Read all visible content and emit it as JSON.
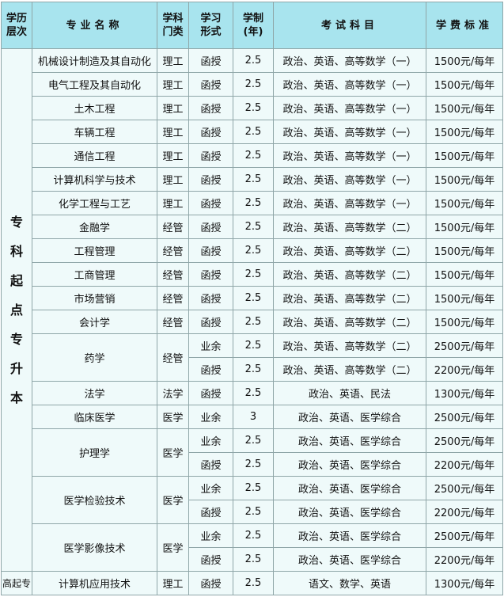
{
  "headers": [
    "学历\n层次",
    "专业名称",
    "学科\n门类",
    "学习\n形式",
    "学制\n(年)",
    "考试科目",
    "学费标准"
  ],
  "levels": [
    {
      "level": "专\n科\n起\n点\n专\n升\n本",
      "majors": [
        {
          "name": "机械设计制造及其自动化",
          "category": "理工",
          "entries": [
            {
              "mode": "函授",
              "years": "2.5",
              "exam": "政治、英语、高等数学（一）",
              "fee": "1500元/每年"
            }
          ]
        },
        {
          "name": "电气工程及其自动化",
          "category": "理工",
          "entries": [
            {
              "mode": "函授",
              "years": "2.5",
              "exam": "政治、英语、高等数学（一）",
              "fee": "1500元/每年"
            }
          ]
        },
        {
          "name": "土木工程",
          "category": "理工",
          "entries": [
            {
              "mode": "函授",
              "years": "2.5",
              "exam": "政治、英语、高等数学（一）",
              "fee": "1500元/每年"
            }
          ]
        },
        {
          "name": "车辆工程",
          "category": "理工",
          "entries": [
            {
              "mode": "函授",
              "years": "2.5",
              "exam": "政治、英语、高等数学（一）",
              "fee": "1500元/每年"
            }
          ]
        },
        {
          "name": "通信工程",
          "category": "理工",
          "entries": [
            {
              "mode": "函授",
              "years": "2.5",
              "exam": "政治、英语、高等数学（一）",
              "fee": "1500元/每年"
            }
          ]
        },
        {
          "name": "计算机科学与技术",
          "category": "理工",
          "entries": [
            {
              "mode": "函授",
              "years": "2.5",
              "exam": "政治、英语、高等数学（一）",
              "fee": "1500元/每年"
            }
          ]
        },
        {
          "name": "化学工程与工艺",
          "category": "理工",
          "entries": [
            {
              "mode": "函授",
              "years": "2.5",
              "exam": "政治、英语、高等数学（一）",
              "fee": "1500元/每年"
            }
          ]
        },
        {
          "name": "金融学",
          "category": "经管",
          "entries": [
            {
              "mode": "函授",
              "years": "2.5",
              "exam": "政治、英语、高等数学（二）",
              "fee": "1500元/每年"
            }
          ]
        },
        {
          "name": "工程管理",
          "category": "经管",
          "entries": [
            {
              "mode": "函授",
              "years": "2.5",
              "exam": "政治、英语、高等数学（二）",
              "fee": "1500元/每年"
            }
          ]
        },
        {
          "name": "工商管理",
          "category": "经管",
          "entries": [
            {
              "mode": "函授",
              "years": "2.5",
              "exam": "政治、英语、高等数学（二）",
              "fee": "1500元/每年"
            }
          ]
        },
        {
          "name": "市场营销",
          "category": "经管",
          "entries": [
            {
              "mode": "函授",
              "years": "2.5",
              "exam": "政治、英语、高等数学（二）",
              "fee": "1500元/每年"
            }
          ]
        },
        {
          "name": "会计学",
          "category": "经管",
          "entries": [
            {
              "mode": "函授",
              "years": "2.5",
              "exam": "政治、英语、高等数学（二）",
              "fee": "1500元/每年"
            }
          ]
        },
        {
          "name": "药学",
          "category": "经管",
          "entries": [
            {
              "mode": "业余",
              "years": "2.5",
              "exam": "政治、英语、高等数学（二）",
              "fee": "2500元/每年"
            },
            {
              "mode": "函授",
              "years": "2.5",
              "exam": "政治、英语、高等数学（二）",
              "fee": "2200元/每年"
            }
          ]
        },
        {
          "name": "法学",
          "category": "法学",
          "entries": [
            {
              "mode": "函授",
              "years": "2.5",
              "exam": "政治、英语、民法",
              "fee": "1300元/每年"
            }
          ]
        },
        {
          "name": "临床医学",
          "category": "医学",
          "entries": [
            {
              "mode": "业余",
              "years": "3",
              "exam": "政治、英语、医学综合",
              "fee": "2500元/每年"
            }
          ]
        },
        {
          "name": "护理学",
          "category": "医学",
          "entries": [
            {
              "mode": "业余",
              "years": "2.5",
              "exam": "政治、英语、医学综合",
              "fee": "2500元/每年"
            },
            {
              "mode": "函授",
              "years": "2.5",
              "exam": "政治、英语、医学综合",
              "fee": "2200元/每年"
            }
          ]
        },
        {
          "name": "医学检验技术",
          "category": "医学",
          "entries": [
            {
              "mode": "业余",
              "years": "2.5",
              "exam": "政治、英语、医学综合",
              "fee": "2500元/每年"
            },
            {
              "mode": "函授",
              "years": "2.5",
              "exam": "政治、英语、医学综合",
              "fee": "2200元/每年"
            }
          ]
        },
        {
          "name": "医学影像技术",
          "category": "医学",
          "entries": [
            {
              "mode": "业余",
              "years": "2.5",
              "exam": "政治、英语、医学综合",
              "fee": "2500元/每年"
            },
            {
              "mode": "函授",
              "years": "2.5",
              "exam": "政治、英语、医学综合",
              "fee": "2200元/每年"
            }
          ]
        }
      ]
    },
    {
      "level": "高起专",
      "majors": [
        {
          "name": "计算机应用技术",
          "category": "理工",
          "entries": [
            {
              "mode": "函授",
              "years": "2.5",
              "exam": "语文、数学、英语",
              "fee": "1300元/每年"
            }
          ]
        }
      ]
    }
  ]
}
